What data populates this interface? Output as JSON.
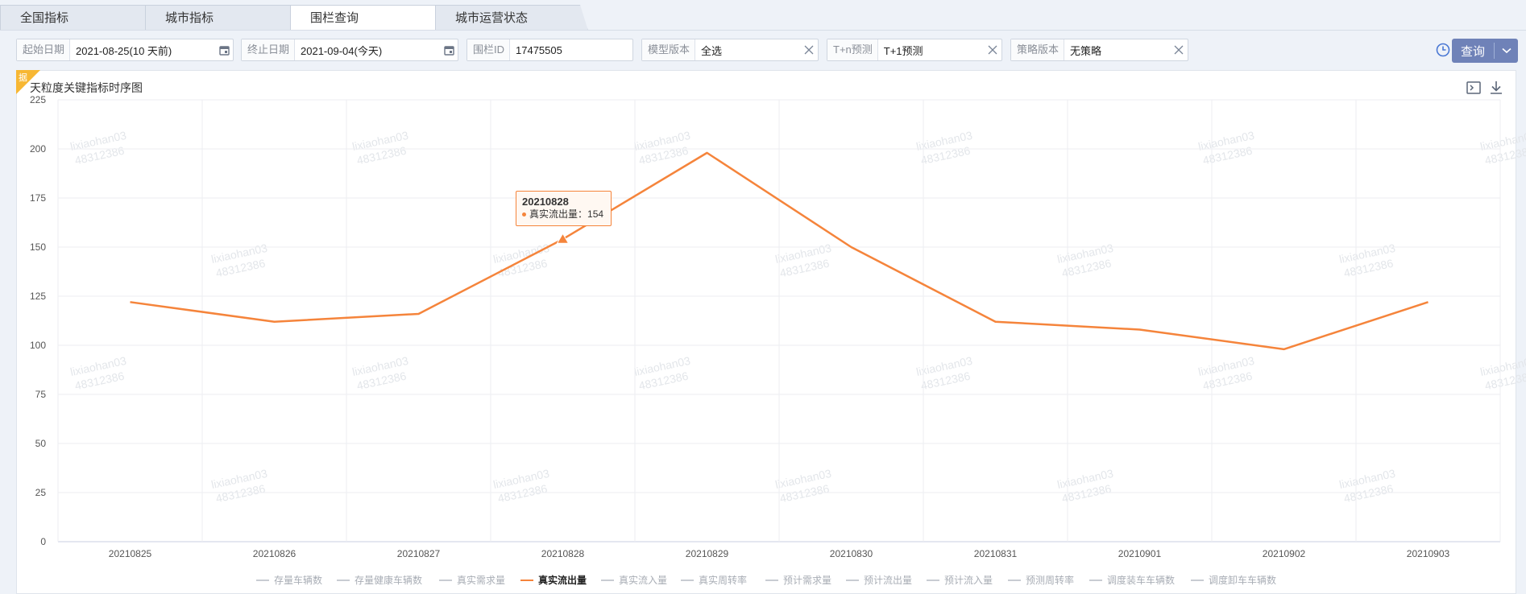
{
  "tabs": [
    {
      "label": "全国指标"
    },
    {
      "label": "城市指标"
    },
    {
      "label": "围栏查询"
    },
    {
      "label": "城市运营状态"
    }
  ],
  "filters": {
    "start": {
      "label": "起始日期",
      "value": "2021-08-25(10 天前)"
    },
    "end": {
      "label": "终止日期",
      "value": "2021-09-04(今天)"
    },
    "fence": {
      "label": "围栏ID",
      "value": "17475505"
    },
    "model": {
      "label": "模型版本",
      "value": "全选"
    },
    "tn": {
      "label": "T+n预测",
      "value": "T+1预测"
    },
    "strategy": {
      "label": "策略版本",
      "value": "无策略"
    }
  },
  "query_label": "查询",
  "corner_tag": "据",
  "chart_title": "天粒度关键指标时序图",
  "watermark": {
    "line1": "lixiaohan03",
    "line2": "48312386"
  },
  "tooltip": {
    "date": "20210828",
    "series": "真实流出量",
    "sep": "：",
    "value": "154"
  },
  "legend": [
    {
      "name": "存量车辆数",
      "active": false
    },
    {
      "name": "存量健康车辆数",
      "active": false
    },
    {
      "name": "真实需求量",
      "active": false
    },
    {
      "name": "真实流出量",
      "active": true
    },
    {
      "name": "真实流入量",
      "active": false
    },
    {
      "name": "真实周转率",
      "active": false
    },
    {
      "name": "预计需求量",
      "active": false
    },
    {
      "name": "预计流出量",
      "active": false
    },
    {
      "name": "预计流入量",
      "active": false
    },
    {
      "name": "预测周转率",
      "active": false
    },
    {
      "name": "调度装车车辆数",
      "active": false
    },
    {
      "name": "调度卸车车辆数",
      "active": false
    }
  ],
  "colors": {
    "series": "#f5843b",
    "accent": "#6f82b8"
  },
  "chart_data": {
    "type": "line",
    "title": "天粒度关键指标时序图",
    "categories": [
      "20210825",
      "20210826",
      "20210827",
      "20210828",
      "20210829",
      "20210830",
      "20210831",
      "20210901",
      "20210902",
      "20210903"
    ],
    "series": [
      {
        "name": "真实流出量",
        "values": [
          122,
          112,
          116,
          154,
          198,
          150,
          112,
          108,
          98,
          122
        ]
      }
    ],
    "ylim": [
      0,
      225
    ],
    "yticks": [
      0,
      25,
      50,
      75,
      100,
      125,
      150,
      175,
      200,
      225
    ],
    "grid": true,
    "legend_position": "bottom"
  }
}
